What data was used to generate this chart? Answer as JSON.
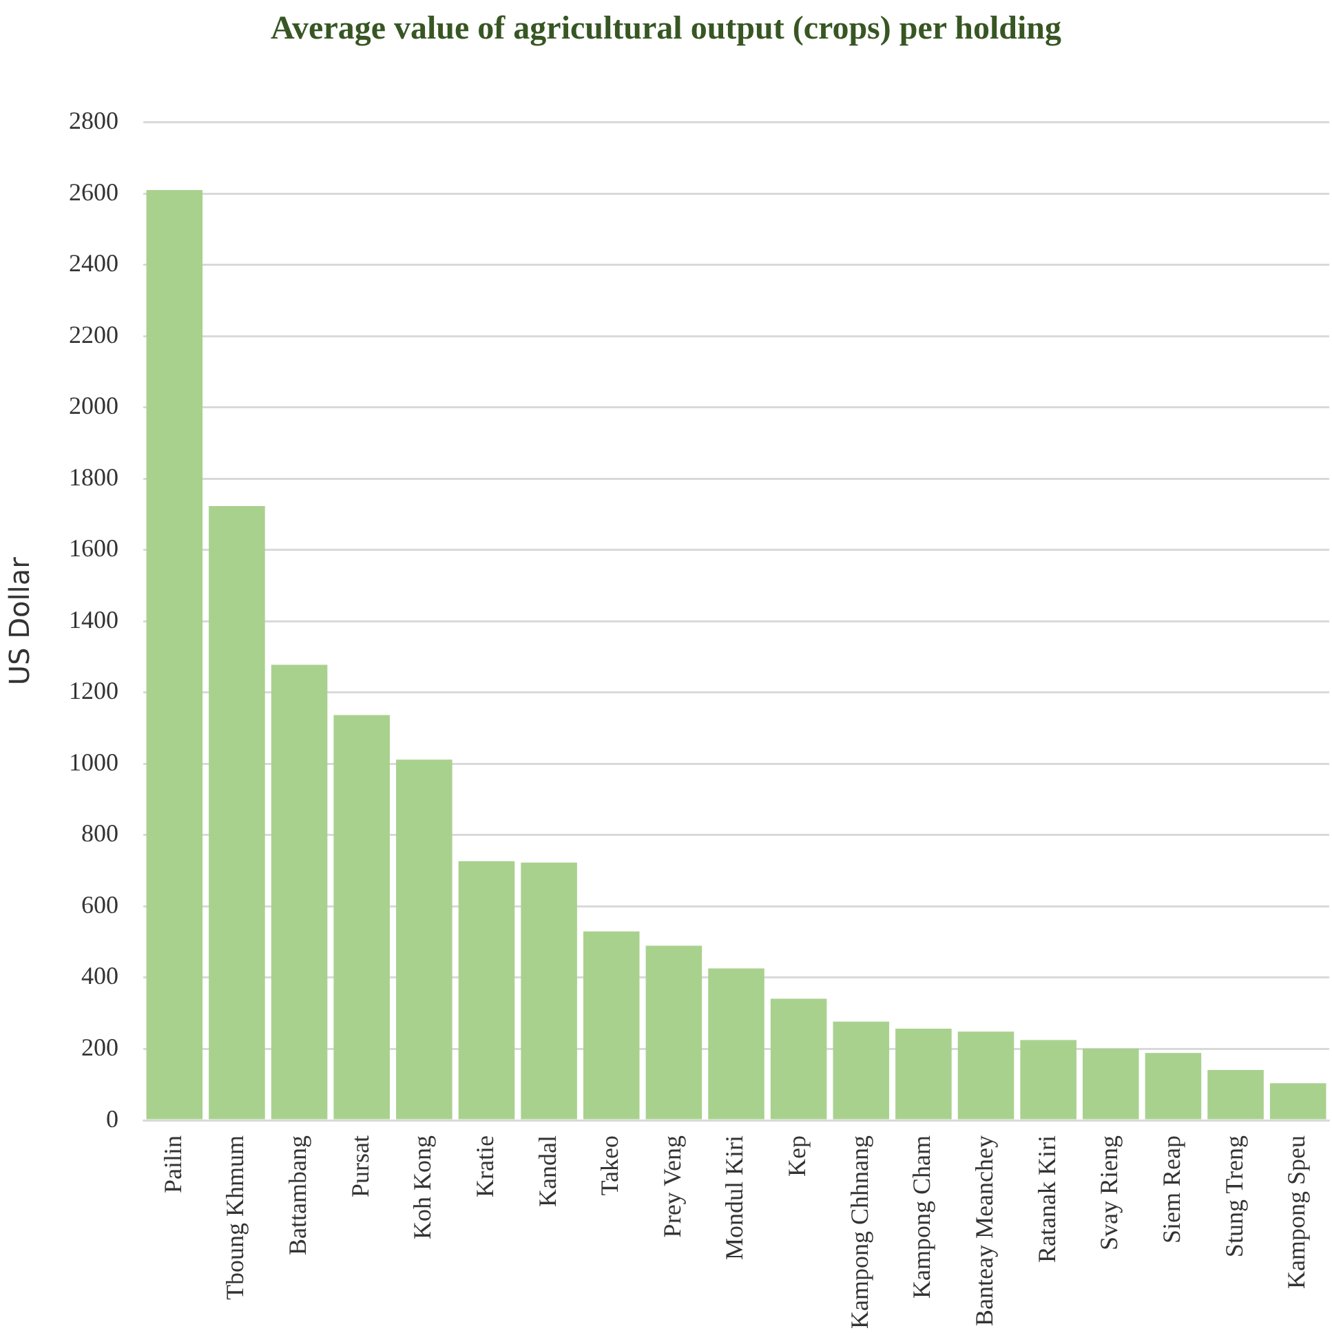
{
  "chart_data": {
    "type": "bar",
    "title": "Average value of agricultural output (crops) per holding",
    "ylabel": "US Dollar",
    "categories": [
      "Pailin",
      "Tboung Khmum",
      "Battambang",
      "Pursat",
      "Koh Kong",
      "Kratie",
      "Kandal",
      "Takeo",
      "Prey Veng",
      "Mondul Kiri",
      "Kep",
      "Kampong Chhnang",
      "Kampong Cham",
      "Banteay Meanchey",
      "Ratanak Kiri",
      "Svay Rieng",
      "Siem Reap",
      "Stung Treng",
      "Kampong Speu"
    ],
    "values": [
      2610,
      1723,
      1278,
      1137,
      1012,
      727,
      723,
      530,
      490,
      426,
      341,
      277,
      257,
      249,
      225,
      201,
      189,
      141,
      104
    ],
    "color": "#a9d18e",
    "ylim": [
      0,
      2800
    ],
    "yticks": [
      0,
      200,
      400,
      600,
      800,
      1000,
      1200,
      1400,
      1600,
      1800,
      2000,
      2200,
      2400,
      2600,
      2800
    ],
    "grid": "y",
    "legend": false
  }
}
